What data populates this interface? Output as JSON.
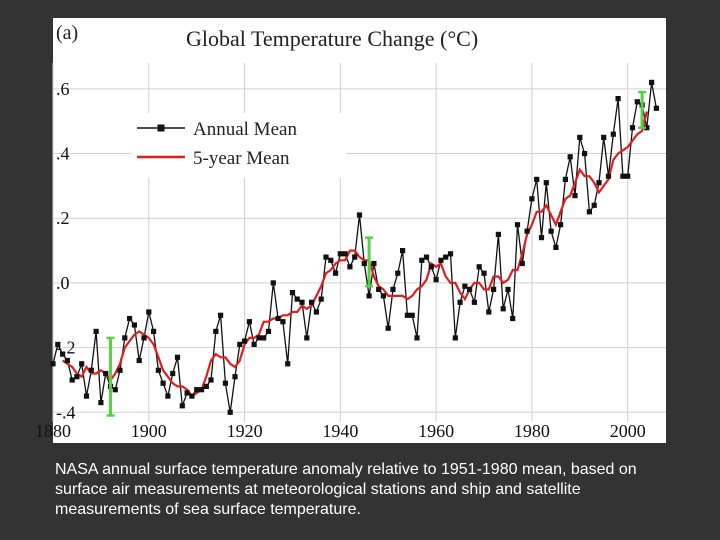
{
  "chart_data": {
    "type": "line",
    "panel_label": "(a)",
    "title": "Global Temperature Change (°C)",
    "x_ticks": [
      "1880",
      "1900",
      "1920",
      "1940",
      "1960",
      "1980",
      "2000"
    ],
    "y_ticks": [
      ".6",
      ".4",
      ".2",
      ".0",
      "-.2",
      "-.4"
    ],
    "xlim": [
      1880,
      2008
    ],
    "ylim": [
      -0.43,
      0.68
    ],
    "grid": true,
    "legend_position": "top-left",
    "series": [
      {
        "name": "Annual Mean",
        "color": "#111111",
        "marker": "square",
        "x": [
          1880,
          1881,
          1882,
          1883,
          1884,
          1885,
          1886,
          1887,
          1888,
          1889,
          1890,
          1891,
          1892,
          1893,
          1894,
          1895,
          1896,
          1897,
          1898,
          1899,
          1900,
          1901,
          1902,
          1903,
          1904,
          1905,
          1906,
          1907,
          1908,
          1909,
          1910,
          1911,
          1912,
          1913,
          1914,
          1915,
          1916,
          1917,
          1918,
          1919,
          1920,
          1921,
          1922,
          1923,
          1924,
          1925,
          1926,
          1927,
          1928,
          1929,
          1930,
          1931,
          1932,
          1933,
          1934,
          1935,
          1936,
          1937,
          1938,
          1939,
          1940,
          1941,
          1942,
          1943,
          1944,
          1945,
          1946,
          1947,
          1948,
          1949,
          1950,
          1951,
          1952,
          1953,
          1954,
          1955,
          1956,
          1957,
          1958,
          1959,
          1960,
          1961,
          1962,
          1963,
          1964,
          1965,
          1966,
          1967,
          1968,
          1969,
          1970,
          1971,
          1972,
          1973,
          1974,
          1975,
          1976,
          1977,
          1978,
          1979,
          1980,
          1981,
          1982,
          1983,
          1984,
          1985,
          1986,
          1987,
          1988,
          1989,
          1990,
          1991,
          1992,
          1993,
          1994,
          1995,
          1996,
          1997,
          1998,
          1999,
          2000,
          2001,
          2002,
          2003,
          2004,
          2005,
          2006
        ],
        "y": [
          -0.25,
          -0.19,
          -0.22,
          -0.24,
          -0.3,
          -0.29,
          -0.25,
          -0.35,
          -0.27,
          -0.15,
          -0.37,
          -0.28,
          -0.32,
          -0.33,
          -0.27,
          -0.17,
          -0.11,
          -0.13,
          -0.24,
          -0.17,
          -0.09,
          -0.15,
          -0.27,
          -0.31,
          -0.35,
          -0.28,
          -0.23,
          -0.38,
          -0.34,
          -0.35,
          -0.33,
          -0.33,
          -0.32,
          -0.3,
          -0.15,
          -0.1,
          -0.31,
          -0.4,
          -0.29,
          -0.19,
          -0.18,
          -0.12,
          -0.19,
          -0.17,
          -0.17,
          -0.15,
          0.0,
          -0.11,
          -0.12,
          -0.25,
          -0.03,
          -0.05,
          -0.06,
          -0.17,
          -0.06,
          -0.09,
          -0.05,
          0.08,
          0.07,
          0.03,
          0.09,
          0.09,
          0.05,
          0.08,
          0.21,
          0.06,
          -0.04,
          0.06,
          -0.02,
          -0.04,
          -0.14,
          -0.02,
          0.03,
          0.1,
          -0.1,
          -0.1,
          -0.17,
          0.07,
          0.08,
          0.05,
          0.01,
          0.07,
          0.08,
          0.09,
          -0.17,
          -0.06,
          -0.01,
          -0.02,
          -0.06,
          0.05,
          0.03,
          -0.09,
          -0.02,
          0.15,
          -0.08,
          -0.02,
          -0.11,
          0.18,
          0.06,
          0.16,
          0.26,
          0.32,
          0.14,
          0.31,
          0.16,
          0.11,
          0.18,
          0.32,
          0.39,
          0.27,
          0.45,
          0.4,
          0.22,
          0.24,
          0.31,
          0.45,
          0.33,
          0.46,
          0.57,
          0.33,
          0.33,
          0.48,
          0.56,
          0.55,
          0.48,
          0.62,
          0.54
        ]
      },
      {
        "name": "5-year Mean",
        "color": "#dd1f1f",
        "x": [
          1882,
          1883,
          1884,
          1885,
          1886,
          1887,
          1888,
          1889,
          1890,
          1891,
          1892,
          1893,
          1894,
          1895,
          1896,
          1897,
          1898,
          1899,
          1900,
          1901,
          1902,
          1903,
          1904,
          1905,
          1906,
          1907,
          1908,
          1909,
          1910,
          1911,
          1912,
          1913,
          1914,
          1915,
          1916,
          1917,
          1918,
          1919,
          1920,
          1921,
          1922,
          1923,
          1924,
          1925,
          1926,
          1927,
          1928,
          1929,
          1930,
          1931,
          1932,
          1933,
          1934,
          1935,
          1936,
          1937,
          1938,
          1939,
          1940,
          1941,
          1942,
          1943,
          1944,
          1945,
          1946,
          1947,
          1948,
          1949,
          1950,
          1951,
          1952,
          1953,
          1954,
          1955,
          1956,
          1957,
          1958,
          1959,
          1960,
          1961,
          1962,
          1963,
          1964,
          1965,
          1966,
          1967,
          1968,
          1969,
          1970,
          1971,
          1972,
          1973,
          1974,
          1975,
          1976,
          1977,
          1978,
          1979,
          1980,
          1981,
          1982,
          1983,
          1984,
          1985,
          1986,
          1987,
          1988,
          1989,
          1990,
          1991,
          1992,
          1993,
          1994,
          1995,
          1996,
          1997,
          1998,
          1999,
          2000,
          2001,
          2002,
          2003,
          2004
        ],
        "y": [
          -0.24,
          -0.25,
          -0.26,
          -0.28,
          -0.29,
          -0.26,
          -0.28,
          -0.28,
          -0.27,
          -0.28,
          -0.3,
          -0.28,
          -0.25,
          -0.2,
          -0.18,
          -0.16,
          -0.15,
          -0.16,
          -0.17,
          -0.19,
          -0.23,
          -0.27,
          -0.29,
          -0.31,
          -0.32,
          -0.32,
          -0.33,
          -0.35,
          -0.34,
          -0.33,
          -0.29,
          -0.24,
          -0.22,
          -0.23,
          -0.23,
          -0.25,
          -0.26,
          -0.24,
          -0.19,
          -0.17,
          -0.17,
          -0.16,
          -0.12,
          -0.12,
          -0.11,
          -0.11,
          -0.1,
          -0.1,
          -0.09,
          -0.09,
          -0.07,
          -0.08,
          -0.07,
          -0.04,
          -0.01,
          0.03,
          0.04,
          0.06,
          0.07,
          0.07,
          0.1,
          0.1,
          0.08,
          0.07,
          0.07,
          0.02,
          -0.01,
          -0.02,
          -0.04,
          -0.04,
          -0.04,
          -0.04,
          -0.05,
          -0.04,
          -0.02,
          -0.01,
          0.01,
          0.06,
          0.05,
          0.06,
          0.02,
          0.0,
          0.0,
          -0.03,
          -0.05,
          -0.02,
          0.0,
          0.0,
          -0.02,
          -0.02,
          0.02,
          0.02,
          0.0,
          0.01,
          0.04,
          0.04,
          0.09,
          0.15,
          0.18,
          0.22,
          0.22,
          0.24,
          0.21,
          0.18,
          0.22,
          0.26,
          0.27,
          0.31,
          0.35,
          0.33,
          0.33,
          0.31,
          0.28,
          0.3,
          0.32,
          0.38,
          0.4,
          0.41,
          0.42,
          0.44,
          0.46,
          0.47,
          0.53
        ]
      }
    ],
    "error_bars": [
      {
        "x": 1892,
        "low": -0.41,
        "high": -0.17,
        "color": "#55d145"
      },
      {
        "x": 1946,
        "low": -0.01,
        "high": 0.14,
        "color": "#55d145"
      },
      {
        "x": 2003,
        "low": 0.48,
        "high": 0.59,
        "color": "#55d145"
      }
    ]
  },
  "caption": "NASA annual surface temperature anomaly relative to 1951-1980 mean, based on surface air measurements at meteorological stations and ship and satellite measurements of sea surface temperature."
}
